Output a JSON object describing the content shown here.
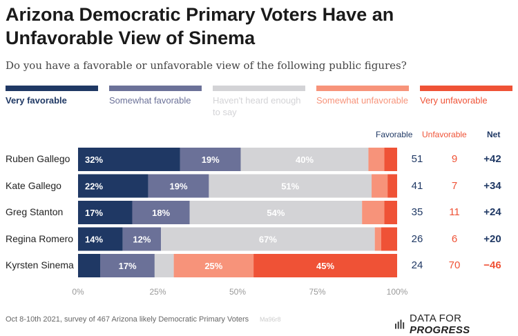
{
  "title": "Arizona Democratic Primary Voters Have an Unfavorable View of Sinema",
  "subtitle": "Do you have a favorable or unfavorable view of the following public figures?",
  "colors": {
    "very_favorable": "#1f3864",
    "somewhat_favorable": "#6b7198",
    "havent_heard": "#d3d3d6",
    "somewhat_unfavorable": "#f7937a",
    "very_unfavorable": "#ef5236",
    "net_positive": "#1f3864",
    "net_negative": "#ef5236"
  },
  "column_headers": {
    "favorable": "Favorable",
    "unfavorable": "Unfavorable",
    "net": "Net"
  },
  "chart_data": {
    "type": "bar",
    "orientation": "horizontal",
    "stacked": true,
    "categories": [
      "Ruben Gallego",
      "Kate Gallego",
      "Greg Stanton",
      "Regina Romero",
      "Kyrsten Sinema"
    ],
    "series": [
      {
        "name": "Very favorable",
        "values": [
          32,
          22,
          17,
          14,
          7
        ],
        "labels": [
          "32%",
          "22%",
          "17%",
          "14%",
          ""
        ]
      },
      {
        "name": "Somewhat favorable",
        "values": [
          19,
          19,
          18,
          12,
          17
        ],
        "labels": [
          "19%",
          "19%",
          "18%",
          "12%",
          "17%"
        ]
      },
      {
        "name": "Haven't heard enough to say",
        "values": [
          40,
          51,
          54,
          67,
          6
        ],
        "labels": [
          "40%",
          "51%",
          "54%",
          "67%",
          ""
        ]
      },
      {
        "name": "Somewhat unfavorable",
        "values": [
          5,
          5,
          7,
          2,
          25
        ],
        "labels": [
          "",
          "",
          "",
          "",
          "25%"
        ]
      },
      {
        "name": "Very unfavorable",
        "values": [
          4,
          3,
          4,
          5,
          45
        ],
        "labels": [
          "",
          "",
          "",
          "",
          "45%"
        ]
      }
    ],
    "xlim": [
      0,
      100
    ],
    "xticks": [
      "0%",
      "25%",
      "50%",
      "75%",
      "100%"
    ],
    "legend_labels": [
      "Very favorable",
      "Somewhat favorable",
      "Haven't heard enough to say",
      "Somewhat unfavorable",
      "Very unfavorable"
    ],
    "legend_placement": "top",
    "favorable": [
      51,
      41,
      35,
      26,
      24
    ],
    "unfavorable": [
      9,
      7,
      11,
      6,
      70
    ],
    "net": [
      "+42",
      "+34",
      "+24",
      "+20",
      "−46"
    ]
  },
  "footer": "Oct 8-10th 2021, survey of 467 Arizona likely Democratic Primary Voters",
  "watermark": "Ma96r8",
  "logo": {
    "text_regular": "DATA FOR ",
    "text_bold": "PROGRESS",
    "icon": "bar-chart-icon"
  }
}
